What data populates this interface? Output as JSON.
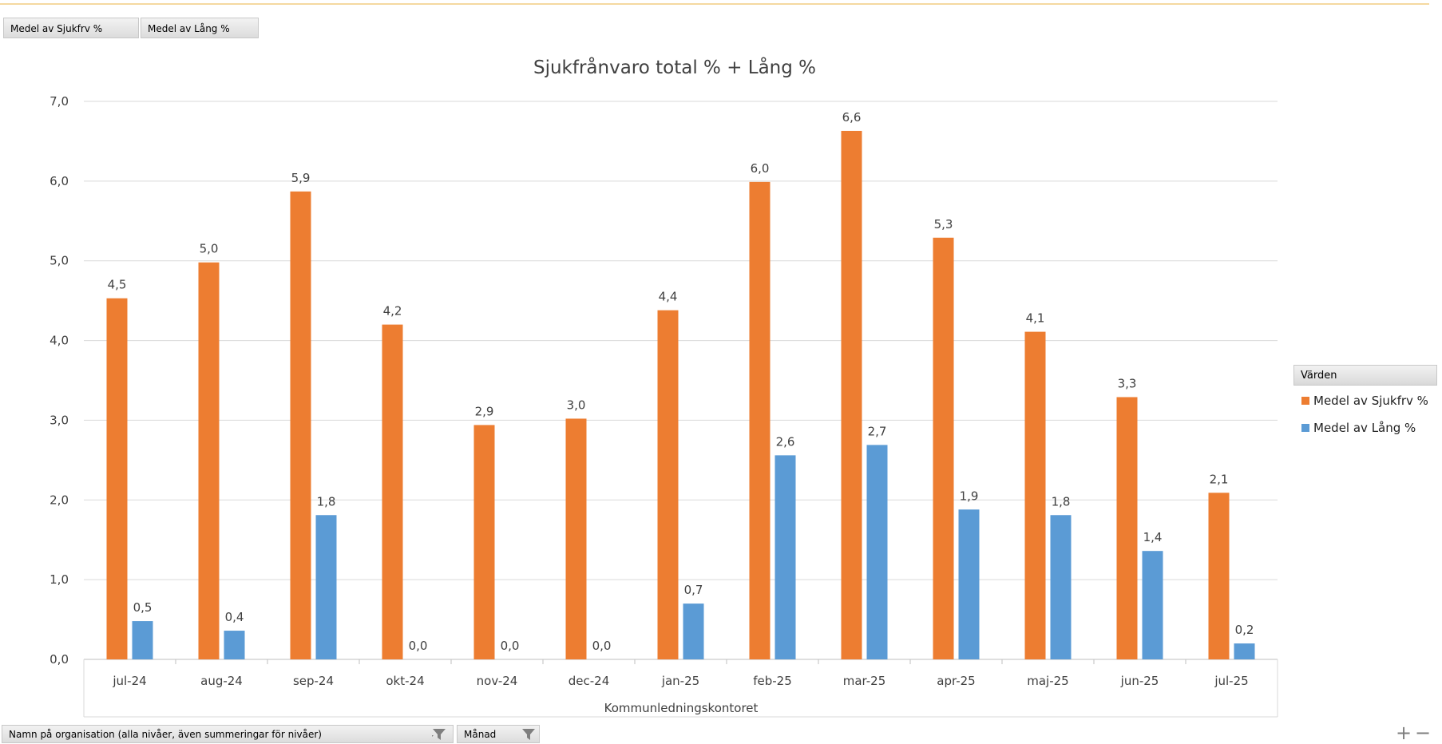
{
  "field_buttons": [
    "Medel av Sjukfrv %",
    "Medel av Lång %"
  ],
  "chart_data": {
    "type": "bar",
    "title": "Sjukfrånvaro total % + Lång %",
    "xlabel": "Kommunledningskontoret",
    "ylabel": "",
    "ylim": [
      0,
      7
    ],
    "yticks": [
      "0,0",
      "1,0",
      "2,0",
      "3,0",
      "4,0",
      "5,0",
      "6,0",
      "7,0"
    ],
    "categories": [
      "jul-24",
      "aug-24",
      "sep-24",
      "okt-24",
      "nov-24",
      "dec-24",
      "jan-25",
      "feb-25",
      "mar-25",
      "apr-25",
      "maj-25",
      "jun-25",
      "jul-25"
    ],
    "series": [
      {
        "name": "Medel av Sjukfrv %",
        "color": "#ed7d31",
        "values": [
          4.53,
          4.98,
          5.87,
          4.2,
          2.94,
          3.02,
          4.38,
          5.99,
          6.63,
          5.29,
          4.11,
          3.29,
          2.09
        ],
        "labels": [
          "4,5",
          "5,0",
          "5,9",
          "4,2",
          "2,9",
          "3,0",
          "4,4",
          "6,0",
          "6,6",
          "5,3",
          "4,1",
          "3,3",
          "2,1"
        ]
      },
      {
        "name": "Medel av Lång %",
        "color": "#5b9bd5",
        "values": [
          0.48,
          0.36,
          1.81,
          0.0,
          0.0,
          0.0,
          0.7,
          2.56,
          2.69,
          1.88,
          1.81,
          1.36,
          0.2
        ],
        "labels": [
          "0,5",
          "0,4",
          "1,8",
          "0,0",
          "0,0",
          "0,0",
          "0,7",
          "2,6",
          "2,7",
          "1,9",
          "1,8",
          "1,4",
          "0,2"
        ]
      }
    ],
    "legend": {
      "title": "Värden",
      "position": "right"
    },
    "grid": true
  },
  "bottom_filters": [
    "Namn på organisation (alla nivåer, även summeringar för nivåer)",
    "Månad"
  ],
  "zoom_controls": [
    "+",
    "−"
  ]
}
